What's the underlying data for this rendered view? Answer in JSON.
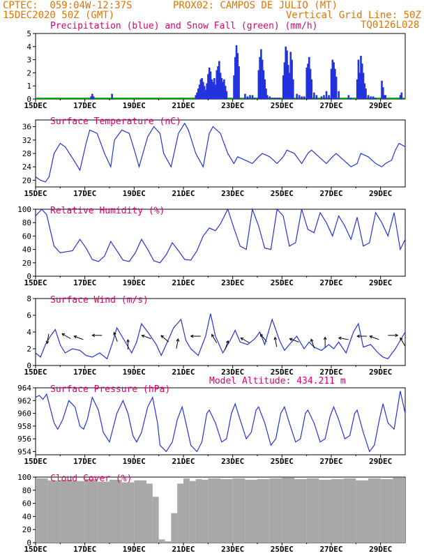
{
  "header": {
    "line1_left": "CPTEC:  059:04W-12:37S",
    "line1_right": "PROX02: CAMPOS DE JULIO (MT)",
    "line2_left": "15DEC2020 50Z (GMT)",
    "line2_right": "Vertical Grid Line: 50Z",
    "line3_right": "TQ0126L028"
  },
  "colors": {
    "header": "#e07400",
    "title": "#e0006a",
    "line": "#2233dd",
    "precip": "#2233dd",
    "snow": "#00aa00",
    "cloud": "#a8a8a8",
    "vector": "#000000"
  },
  "x_tick_labels": [
    "15DEC",
    "17DEC",
    "19DEC",
    "21DEC",
    "23DEC",
    "25DEC",
    "27DEC",
    "29DEC"
  ],
  "x_range_days": [
    0,
    15
  ],
  "chart_data": [
    {
      "id": "precip",
      "type": "bar",
      "title": "Precipitation (blue) and Snow Fall (green) (mm/h)",
      "ylim": [
        0,
        5
      ],
      "yticks": [
        "0",
        "1",
        "2",
        "3",
        "4",
        "5"
      ],
      "series": [
        {
          "name": "Precipitation",
          "color": "#2233dd",
          "x": [
            2.25,
            2.3,
            2.35,
            3.1,
            6.5,
            6.55,
            6.6,
            6.65,
            6.7,
            6.75,
            6.8,
            6.85,
            6.9,
            6.95,
            7,
            7.05,
            7.1,
            7.15,
            7.2,
            7.25,
            7.3,
            7.35,
            7.4,
            7.45,
            7.5,
            7.55,
            7.6,
            7.65,
            7.7,
            7.75,
            8.05,
            8.1,
            8.15,
            8.2,
            8.25,
            8.5,
            8.6,
            8.7,
            8.8,
            8.9,
            9.05,
            9.1,
            9.15,
            9.2,
            9.25,
            9.3,
            9.35,
            9.4,
            9.5,
            9.6,
            9.7,
            9.8,
            9.9,
            10.05,
            10.1,
            10.15,
            10.2,
            10.25,
            10.3,
            10.35,
            10.4,
            10.45,
            10.6,
            10.7,
            10.8,
            10.9,
            11.0,
            11.05,
            11.1,
            11.15,
            11.2,
            11.3,
            11.4,
            11.6,
            11.7,
            11.8,
            11.9,
            12.0,
            12.05,
            12.1,
            12.15,
            12.2,
            12.3,
            12.7,
            12.8,
            13.05,
            13.1,
            13.15,
            13.2,
            13.25,
            13.3,
            13.35,
            13.4,
            13.5,
            13.6,
            13.7,
            13.8,
            14.05,
            14.1,
            14.15,
            14.2,
            14.8,
            14.85
          ],
          "y": [
            0.2,
            0.4,
            0.2,
            0.4,
            0.3,
            0.5,
            0.8,
            1.1,
            1.5,
            1.6,
            1.3,
            1.0,
            0.7,
            1.2,
            1.9,
            2.4,
            2.1,
            1.5,
            1.3,
            1.6,
            1.1,
            2.2,
            2.5,
            2.9,
            2.0,
            1.6,
            1.3,
            1.5,
            1.0,
            0.6,
            1.8,
            3.2,
            4.1,
            3.5,
            2.5,
            0.4,
            0.2,
            0.3,
            0.3,
            0.1,
            2.2,
            3.2,
            3.8,
            3.0,
            2.2,
            1.5,
            0.8,
            0.3,
            0.2,
            0.1,
            0.1,
            0.1,
            0.1,
            1.8,
            2.8,
            4.0,
            3.7,
            2.6,
            2.0,
            3.6,
            3.0,
            1.5,
            0.4,
            0.3,
            0.2,
            0.2,
            2.4,
            2.7,
            3.2,
            2.3,
            1.5,
            0.5,
            0.3,
            0.2,
            0.3,
            0.6,
            0.3,
            2.3,
            3.0,
            2.8,
            2.3,
            1.7,
            0.6,
            0.3,
            0.1,
            1.5,
            3.0,
            2.0,
            3.3,
            2.7,
            2.0,
            1.2,
            0.8,
            0.3,
            0.2,
            0.2,
            0.1,
            1.4,
            0.9,
            0.3,
            0.3,
            0.3,
            0.5
          ]
        }
      ]
    },
    {
      "id": "temp",
      "type": "line",
      "title": "Surface Temperature (nC)",
      "ylim": [
        18,
        38
      ],
      "yticks": [
        "20",
        "24",
        "28",
        "32",
        "36"
      ],
      "series": [
        {
          "name": "Temperature",
          "color": "#2233dd",
          "x": [
            0,
            0.2,
            0.4,
            0.55,
            0.75,
            1,
            1.2,
            1.55,
            1.8,
            2.05,
            2.2,
            2.5,
            2.8,
            3.05,
            3.2,
            3.5,
            3.8,
            4.05,
            4.2,
            4.55,
            4.8,
            5.05,
            5.2,
            5.5,
            5.8,
            6.05,
            6.2,
            6.5,
            6.8,
            7.05,
            7.2,
            7.5,
            7.8,
            8.05,
            8.2,
            8.5,
            8.8,
            9.05,
            9.2,
            9.5,
            9.8,
            10.05,
            10.2,
            10.5,
            10.8,
            11.05,
            11.2,
            11.5,
            11.8,
            12.05,
            12.2,
            12.5,
            12.8,
            13.05,
            13.2,
            13.5,
            13.8,
            14.05,
            14.2,
            14.45,
            14.6,
            14.75,
            15
          ],
          "y": [
            21,
            20,
            19.5,
            21,
            28,
            31,
            30,
            26,
            23,
            31,
            35,
            34,
            28,
            24,
            32,
            35,
            34,
            28,
            24,
            33,
            36,
            34,
            28,
            24,
            34,
            37,
            35,
            28,
            24,
            34,
            36,
            34,
            28,
            25,
            27,
            26,
            25,
            27,
            28,
            27,
            25,
            27,
            29,
            28,
            25,
            28,
            29,
            27,
            25,
            27,
            28,
            26,
            24,
            25,
            28,
            27,
            25,
            24,
            25,
            26,
            29,
            31,
            30
          ]
        }
      ]
    },
    {
      "id": "rh",
      "type": "line",
      "title": "Relative Humidity (%)",
      "ylim": [
        0,
        100
      ],
      "yticks": [
        "0",
        "20",
        "40",
        "60",
        "80",
        "100"
      ],
      "series": [
        {
          "name": "Relative Humidity",
          "color": "#2233dd",
          "x": [
            0,
            0.25,
            0.45,
            0.75,
            1,
            1.5,
            1.8,
            2.05,
            2.3,
            2.55,
            2.8,
            3.05,
            3.3,
            3.55,
            3.8,
            4.05,
            4.3,
            4.55,
            4.8,
            5.05,
            5.3,
            5.55,
            5.8,
            6.05,
            6.3,
            6.55,
            6.8,
            7.05,
            7.3,
            7.5,
            7.8,
            8.05,
            8.3,
            8.55,
            8.8,
            9.05,
            9.3,
            9.55,
            9.8,
            10.05,
            10.3,
            10.55,
            10.8,
            11.05,
            11.3,
            11.55,
            11.8,
            12.05,
            12.3,
            12.55,
            12.8,
            13.05,
            13.3,
            13.55,
            13.8,
            14.05,
            14.3,
            14.55,
            14.8,
            15
          ],
          "y": [
            90,
            100,
            92,
            45,
            35,
            38,
            55,
            42,
            25,
            22,
            30,
            52,
            38,
            24,
            22,
            35,
            55,
            40,
            23,
            20,
            32,
            50,
            38,
            25,
            24,
            38,
            60,
            72,
            68,
            78,
            100,
            72,
            45,
            40,
            100,
            75,
            42,
            40,
            100,
            90,
            45,
            50,
            100,
            70,
            65,
            95,
            80,
            60,
            90,
            75,
            55,
            88,
            45,
            50,
            95,
            80,
            60,
            95,
            40,
            55
          ]
        }
      ]
    },
    {
      "id": "wind",
      "type": "line",
      "title": "Surface Wind (m/s)",
      "ylim": [
        0,
        8
      ],
      "yticks": [
        "0",
        "2",
        "4",
        "6",
        "8"
      ],
      "series": [
        {
          "name": "Wind Speed",
          "color": "#2233dd",
          "x": [
            0,
            0.2,
            0.4,
            0.6,
            0.8,
            1,
            1.2,
            1.5,
            1.8,
            2.05,
            2.3,
            2.6,
            2.9,
            3.1,
            3.3,
            3.6,
            3.9,
            4.1,
            4.3,
            4.6,
            4.9,
            5.1,
            5.3,
            5.6,
            5.9,
            6.1,
            6.3,
            6.6,
            6.9,
            7.1,
            7.3,
            7.6,
            7.9,
            8.1,
            8.3,
            8.6,
            8.9,
            9.1,
            9.3,
            9.6,
            9.9,
            10.1,
            10.3,
            10.6,
            10.9,
            11.1,
            11.3,
            11.6,
            11.9,
            12.1,
            12.3,
            12.6,
            12.9,
            13.1,
            13.3,
            13.6,
            13.9,
            14.1,
            14.3,
            14.6,
            15
          ],
          "y": [
            1.5,
            1.0,
            2.5,
            3.5,
            4.3,
            2.5,
            1.5,
            2.0,
            1.8,
            1.2,
            1.0,
            1.5,
            0.8,
            2.5,
            4.5,
            3.0,
            1.5,
            2.8,
            5.0,
            3.8,
            2.5,
            1.2,
            2.5,
            4.5,
            5.5,
            3.0,
            2.0,
            1.2,
            3.5,
            6.2,
            3.5,
            1.5,
            3.0,
            4.2,
            2.8,
            2.5,
            3.2,
            4.0,
            2.5,
            5.5,
            3.0,
            1.8,
            2.5,
            3.5,
            2.0,
            2.8,
            2.2,
            1.8,
            2.5,
            2.0,
            2.8,
            1.5,
            4.0,
            5.0,
            2.2,
            2.5,
            1.5,
            1.0,
            0.8,
            2.0,
            4.0
          ]
        }
      ],
      "vectors": {
        "x": [
          0.5,
          1.25,
          1.75,
          2.5,
          3.25,
          3.75,
          4.5,
          5.25,
          5.75,
          6.5,
          7.25,
          7.75,
          8.5,
          9.25,
          9.75,
          10.5,
          11.25,
          11.75,
          12.5,
          13.25,
          13.75,
          14.5,
          14.9
        ],
        "y": [
          3.2,
          3.5,
          3.3,
          3.6,
          3.4,
          2.5,
          3.4,
          3.2,
          2.6,
          3.5,
          3.2,
          2.4,
          3.0,
          3.3,
          2.8,
          3.0,
          2.6,
          2.8,
          3.2,
          3.5,
          3.3,
          3.6,
          2.8
        ],
        "angle_deg": [
          100,
          210,
          200,
          180,
          250,
          270,
          200,
          220,
          280,
          180,
          240,
          290,
          210,
          230,
          260,
          200,
          250,
          270,
          190,
          180,
          200,
          0,
          240
        ]
      }
    },
    {
      "id": "pres",
      "type": "line",
      "title": "Surface Pressure (hPa)",
      "annotation": "Model Altitude: 434.211 m",
      "ylim": [
        953.5,
        964
      ],
      "yticks": [
        "954",
        "956",
        "958",
        "960",
        "962",
        "964"
      ],
      "series": [
        {
          "name": "Pressure",
          "color": "#2233dd",
          "x": [
            0,
            0.15,
            0.3,
            0.45,
            0.75,
            0.9,
            1.1,
            1.35,
            1.6,
            1.8,
            1.95,
            2.1,
            2.3,
            2.55,
            2.75,
            3.0,
            3.1,
            3.3,
            3.55,
            3.75,
            3.95,
            4.1,
            4.3,
            4.55,
            4.75,
            4.95,
            5.05,
            5.3,
            5.55,
            5.75,
            5.95,
            6.1,
            6.3,
            6.55,
            6.75,
            6.95,
            7.05,
            7.3,
            7.55,
            7.75,
            7.95,
            8.1,
            8.3,
            8.55,
            8.75,
            8.95,
            9.05,
            9.3,
            9.55,
            9.75,
            9.95,
            10.1,
            10.3,
            10.55,
            10.75,
            10.95,
            11.05,
            11.3,
            11.55,
            11.75,
            11.95,
            12.1,
            12.3,
            12.55,
            12.75,
            12.95,
            13.05,
            13.3,
            13.55,
            13.75,
            13.95,
            14.1,
            14.3,
            14.55,
            14.8,
            15
          ],
          "y": [
            962.5,
            962.8,
            962.2,
            963,
            958.5,
            957.5,
            959,
            962,
            961,
            958,
            957.5,
            959,
            962.5,
            960.5,
            957,
            955.5,
            957,
            960,
            962,
            960,
            956.5,
            955.5,
            957,
            961,
            962.5,
            958.5,
            955,
            954,
            955.5,
            959,
            961,
            958.5,
            955,
            954,
            955.5,
            960,
            960.5,
            958.5,
            955.5,
            956,
            960,
            961.5,
            959,
            956,
            957,
            960.5,
            961,
            958.5,
            955,
            956,
            960,
            961,
            958.5,
            955.5,
            956,
            960,
            960.5,
            958.5,
            955.5,
            956,
            959.5,
            961,
            959,
            956,
            956.5,
            960,
            960.5,
            957,
            954,
            955,
            959,
            961.5,
            958.5,
            957.5,
            963.5,
            960
          ]
        }
      ]
    },
    {
      "id": "cloud",
      "type": "bar",
      "title": "Cloud Cover (%)",
      "ylim": [
        0,
        100
      ],
      "yticks": [
        "0",
        "20",
        "40",
        "60",
        "80",
        "100"
      ],
      "series": [
        {
          "name": "Cloud Cover",
          "color": "#a8a8a8",
          "x": [
            0,
            0.5,
            1,
            1.5,
            2,
            2.5,
            3,
            3.5,
            4,
            4.5,
            4.75,
            5,
            5.25,
            5.5,
            5.75,
            6,
            6.25,
            6.5,
            6.75,
            7,
            7.5,
            8,
            8.5,
            9,
            9.5,
            10,
            10.5,
            11,
            11.5,
            12,
            12.5,
            13,
            13.5,
            14,
            14.5
          ],
          "y": [
            98,
            95,
            96,
            94,
            97,
            93,
            96,
            92,
            95,
            90,
            70,
            5,
            2,
            45,
            90,
            98,
            94,
            97,
            96,
            98,
            97,
            98,
            96,
            97,
            98,
            99,
            97,
            98,
            96,
            97,
            98,
            95,
            98,
            97,
            99
          ]
        }
      ]
    }
  ]
}
